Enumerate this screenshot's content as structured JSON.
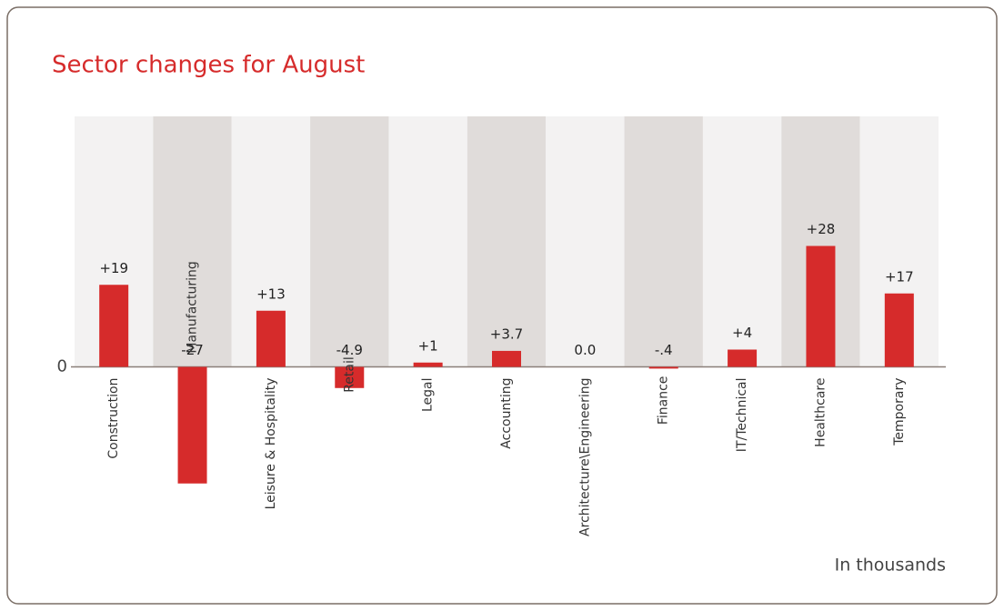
{
  "chart_data": {
    "type": "bar",
    "title": "Sector changes for August",
    "categories": [
      "Construction",
      "Manufacturing",
      "Leisure & Hospitality",
      "Retail",
      "Legal",
      "Accounting",
      "Architecture\\Engineering",
      "Finance",
      "IT/Technical",
      "Healthcare",
      "Temporary"
    ],
    "values": [
      19,
      -27,
      13,
      -4.9,
      1,
      3.7,
      0,
      -0.4,
      4,
      28,
      17
    ],
    "value_labels": [
      "+19",
      "-27",
      "+13",
      "-4.9",
      "+1",
      "+3.7",
      "0.0",
      "-.4",
      "+4",
      "+28",
      "+17"
    ],
    "color": "#d62b2b",
    "ylim": [
      -30,
      58
    ],
    "yticks": [
      0
    ],
    "annotation": "In thousands"
  }
}
